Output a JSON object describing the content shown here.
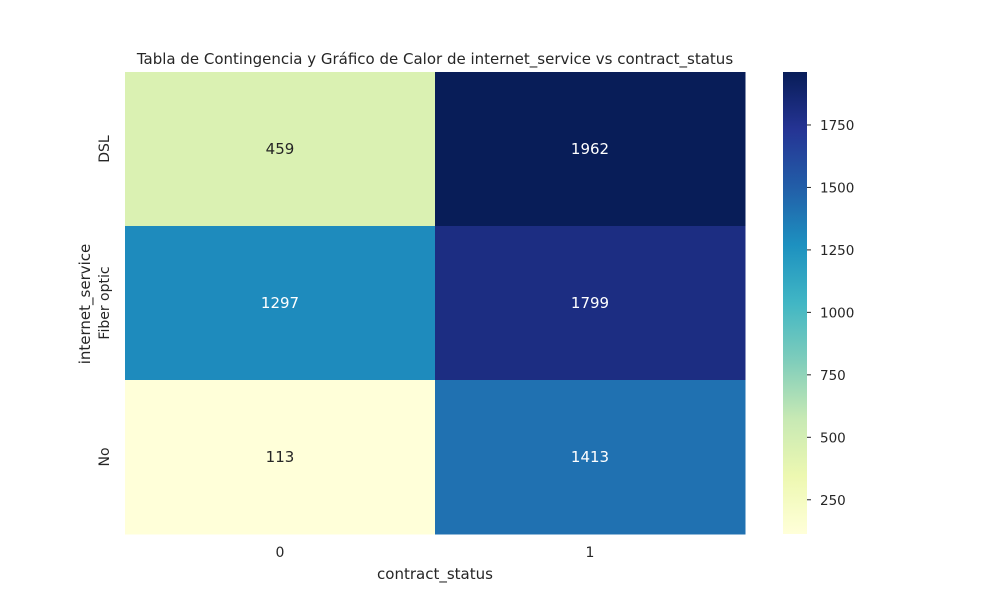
{
  "chart_data": {
    "type": "heatmap",
    "title": "Tabla de Contingencia y Gráfico de Calor de internet_service vs contract_status",
    "xlabel": "contract_status",
    "ylabel": "internet_service",
    "x_categories": [
      "0",
      "1"
    ],
    "y_categories": [
      "DSL",
      "Fiber optic",
      "No"
    ],
    "values": [
      [
        459,
        1962
      ],
      [
        1297,
        1799
      ],
      [
        113,
        1413
      ]
    ],
    "colormap": "YlGnBu",
    "colorbar": {
      "min": 113,
      "max": 1962,
      "ticks": [
        250,
        500,
        750,
        1000,
        1250,
        1500,
        1750
      ]
    }
  }
}
